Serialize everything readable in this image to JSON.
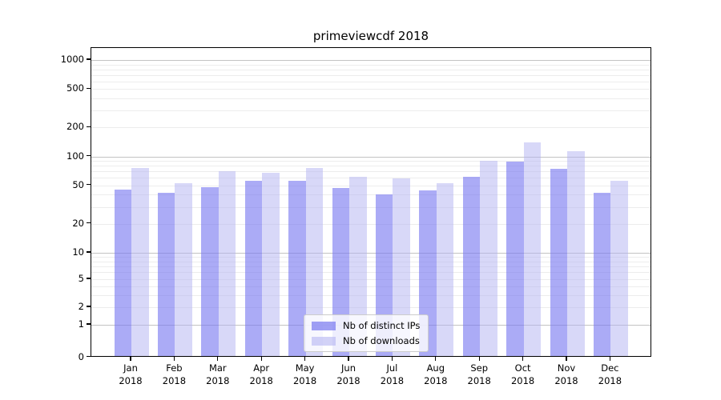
{
  "title": "primeviewcdf 2018",
  "chart_data": {
    "type": "bar",
    "title": "primeviewcdf 2018",
    "categories": [
      "Jan",
      "Feb",
      "Mar",
      "Apr",
      "May",
      "Jun",
      "Jul",
      "Aug",
      "Sep",
      "Oct",
      "Nov",
      "Dec"
    ],
    "category_year": "2018",
    "series": [
      {
        "name": "Nb of distinct IPs",
        "color": "#7777f0",
        "alpha": 0.62,
        "values": [
          44,
          41,
          47,
          54,
          54,
          46,
          39,
          43,
          60,
          86,
          72,
          41
        ]
      },
      {
        "name": "Nb of downloads",
        "color": "#b1b1f2",
        "alpha": 0.5,
        "values": [
          73,
          51,
          68,
          66,
          73,
          60,
          58,
          51,
          88,
          135,
          110,
          54
        ]
      }
    ],
    "xlabel": "",
    "ylabel": "",
    "yscale": "symlog",
    "yticks": [
      0,
      1,
      2,
      5,
      10,
      20,
      50,
      100,
      200,
      500,
      1000
    ],
    "ylim": [
      0,
      1400
    ],
    "grid": true,
    "legend_position": "lower center",
    "major_grid_values": [
      1,
      10,
      100,
      1000
    ],
    "minor_grid_values": [
      2,
      3,
      4,
      5,
      6,
      7,
      8,
      9,
      20,
      30,
      40,
      50,
      60,
      70,
      80,
      90,
      200,
      300,
      400,
      500,
      600,
      700,
      800,
      900
    ]
  },
  "colors": {
    "major_grid": "#c3c3c3",
    "minor_grid": "#ececec",
    "axis": "#000000",
    "legend_border": "#cccccc"
  }
}
